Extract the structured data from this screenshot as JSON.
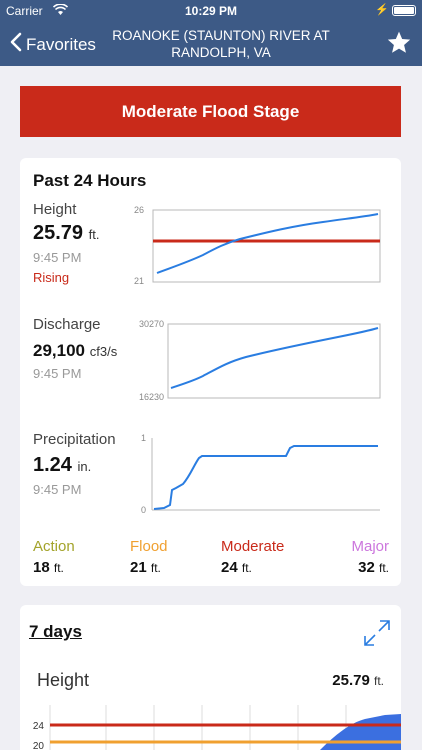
{
  "status_bar": {
    "carrier": "Carrier",
    "time": "10:29 PM"
  },
  "nav": {
    "back_label": "Favorites",
    "title": "ROANOKE (STAUNTON) RIVER AT RANDOLPH, VA"
  },
  "banner": {
    "text": "Moderate Flood Stage",
    "color": "#c92a1a"
  },
  "past24": {
    "title": "Past 24 Hours",
    "height": {
      "label": "Height",
      "value": "25.79",
      "unit": "ft.",
      "time": "9:45 PM",
      "trend": "Rising",
      "axis_max": "26",
      "axis_min": "21",
      "threshold": 24
    },
    "discharge": {
      "label": "Discharge",
      "value": "29,100",
      "unit": "cf3/s",
      "time": "9:45 PM",
      "axis_max": "30270",
      "axis_min": "16230"
    },
    "precipitation": {
      "label": "Precipitation",
      "value": "1.24",
      "unit": "in.",
      "time": "9:45 PM",
      "axis_max": "1",
      "axis_min": "0"
    }
  },
  "stages": [
    {
      "name": "Action",
      "value": "18",
      "unit": "ft.",
      "color": "#a3a32a"
    },
    {
      "name": "Flood",
      "value": "21",
      "unit": "ft.",
      "color": "#f0a030"
    },
    {
      "name": "Moderate",
      "value": "24",
      "unit": "ft.",
      "color": "#c92a1a"
    },
    {
      "name": "Major",
      "value": "32",
      "unit": "ft.",
      "color": "#cc77dd"
    }
  ],
  "seven_days": {
    "title": "7 days",
    "height_label": "Height",
    "height_value": "25.79",
    "height_unit": "ft.",
    "ticks": [
      "24",
      "20"
    ]
  },
  "colors": {
    "nav": "#3d5a86",
    "line": "#2a7de1",
    "area": "#3b6fe0"
  }
}
